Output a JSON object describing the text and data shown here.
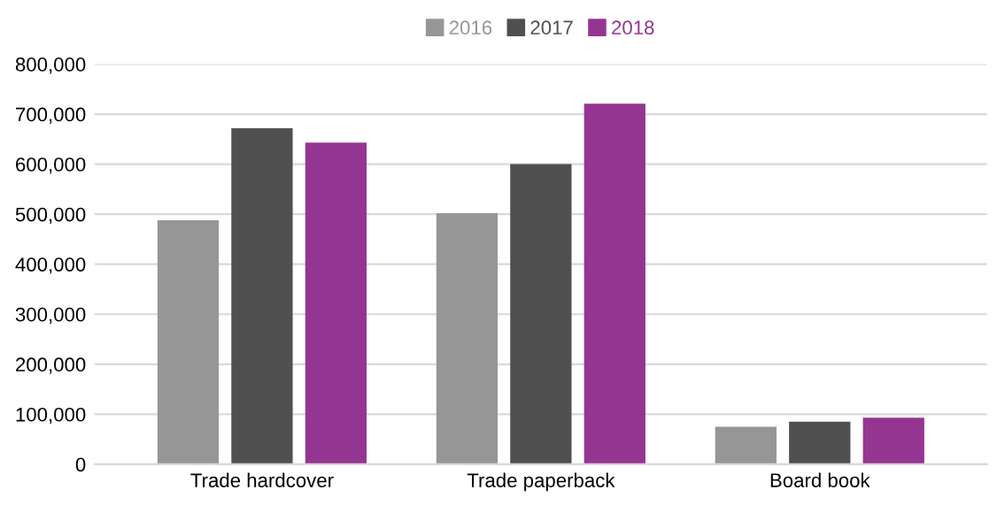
{
  "chart_data": {
    "type": "bar",
    "categories": [
      "Trade hardcover",
      "Trade paperback",
      "Board book"
    ],
    "series": [
      {
        "name": "2016",
        "color": "#969696",
        "values": [
          488000,
          502000,
          75000
        ]
      },
      {
        "name": "2017",
        "color": "#505050",
        "values": [
          672000,
          600000,
          85000
        ]
      },
      {
        "name": "2018",
        "color": "#953592",
        "values": [
          643000,
          721000,
          93000
        ]
      }
    ],
    "ylim": [
      0,
      800000
    ],
    "yticks": [
      {
        "value": 0,
        "label": "0"
      },
      {
        "value": 100000,
        "label": "100,000"
      },
      {
        "value": 200000,
        "label": "200,000"
      },
      {
        "value": 300000,
        "label": "300,000"
      },
      {
        "value": 400000,
        "label": "400,000"
      },
      {
        "value": 500000,
        "label": "500,000"
      },
      {
        "value": 600000,
        "label": "600,000"
      },
      {
        "value": 700000,
        "label": "700,000"
      },
      {
        "value": 800000,
        "label": "800,000"
      }
    ],
    "grid": "y",
    "legend": "top"
  }
}
